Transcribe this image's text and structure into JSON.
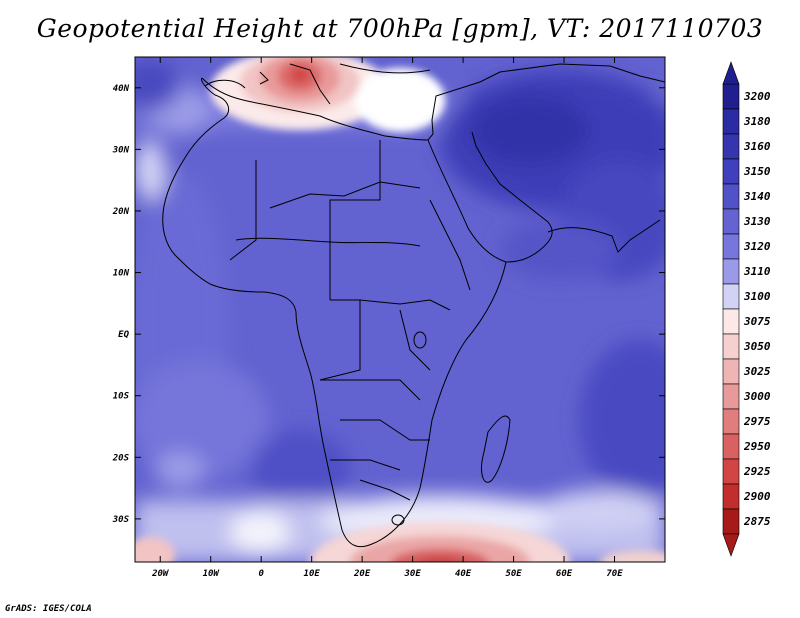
{
  "title": "Geopotential Height at 700hPa [gpm], VT: 2017110703",
  "credit": "GrADS: IGES/COLA",
  "map": {
    "lon_range": [
      -25,
      80
    ],
    "lat_range": [
      -37,
      45
    ],
    "x_ticks": [
      "20W",
      "10W",
      "0",
      "10E",
      "20E",
      "30E",
      "40E",
      "50E",
      "60E",
      "70E"
    ],
    "y_ticks": [
      "40N",
      "30N",
      "20N",
      "10N",
      "EQ",
      "10S",
      "20S",
      "30S"
    ]
  },
  "colorbar": {
    "labels": [
      "3200",
      "3180",
      "3160",
      "3150",
      "3140",
      "3130",
      "3120",
      "3110",
      "3100",
      "3075",
      "3050",
      "3025",
      "3000",
      "2975",
      "2950",
      "2925",
      "2900",
      "2875"
    ],
    "colors": [
      "#1f1f8f",
      "#2b2ba3",
      "#3535b0",
      "#4040bd",
      "#5252c8",
      "#6363d2",
      "#7676dc",
      "#9a9ae8",
      "#d2d2f4",
      "#fde8e8",
      "#f6cfcf",
      "#efb4b4",
      "#e89999",
      "#e07d7d",
      "#d96161",
      "#d24545",
      "#c22d2d",
      "#a61a1a"
    ]
  }
}
